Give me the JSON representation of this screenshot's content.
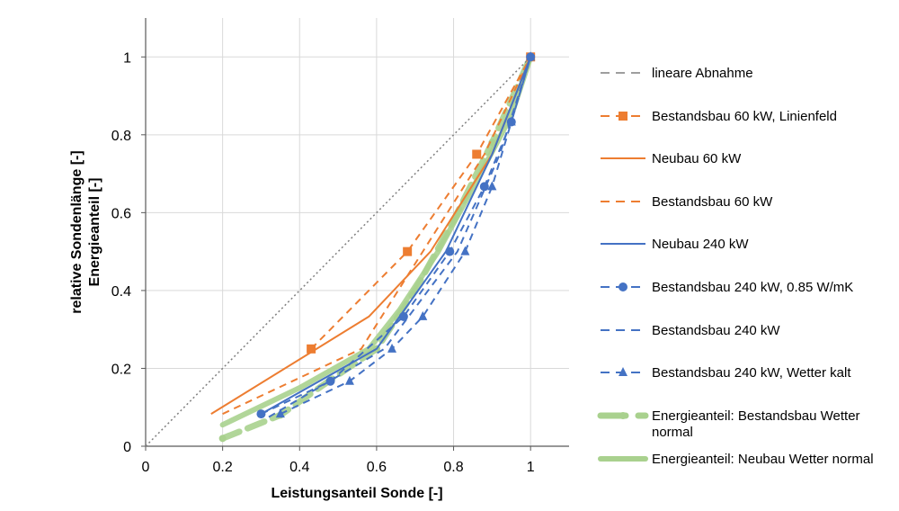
{
  "chart_data": {
    "type": "line",
    "xlabel": "Leistungsanteil Sonde [-]",
    "ylabel_lines": [
      "relative Sondenlänge [-]",
      "Energieanteil [-]"
    ],
    "xlim": [
      0,
      1.1
    ],
    "ylim": [
      0,
      1.1
    ],
    "x_ticks": [
      "0",
      "0.2",
      "0.4",
      "0.6",
      "0.8",
      "1"
    ],
    "y_ticks": [
      "0",
      "0.2",
      "0.4",
      "0.6",
      "0.8",
      "1"
    ],
    "grid": true,
    "legend_position": "right",
    "series": [
      {
        "name": "lineare Abnahme",
        "color": "#7f7f7f",
        "style": "dotted",
        "width": 1.5,
        "marker": "none",
        "points": [
          [
            0,
            0
          ],
          [
            1,
            1
          ]
        ]
      },
      {
        "name": "Bestandsbau 60 kW, Linienfeld",
        "color": "#ed7d31",
        "style": "dashed",
        "width": 2,
        "marker": "square",
        "points": [
          [
            0.43,
            0.25
          ],
          [
            0.68,
            0.5
          ],
          [
            0.86,
            0.75
          ],
          [
            1.0,
            1.0
          ]
        ]
      },
      {
        "name": "Neubau 60 kW",
        "color": "#ed7d31",
        "style": "solid",
        "width": 2,
        "marker": "none",
        "points": [
          [
            0.17,
            0.083
          ],
          [
            0.58,
            0.333
          ],
          [
            0.74,
            0.5
          ],
          [
            0.9,
            0.75
          ],
          [
            1.0,
            1.0
          ]
        ]
      },
      {
        "name": "Bestandsbau 60 kW",
        "color": "#ed7d31",
        "style": "dashed",
        "width": 2,
        "marker": "none",
        "points": [
          [
            0.2,
            0.083
          ],
          [
            0.56,
            0.25
          ],
          [
            0.72,
            0.5
          ],
          [
            0.88,
            0.75
          ],
          [
            1.0,
            1.0
          ]
        ]
      },
      {
        "name": "Neubau 240 kW",
        "color": "#4472c4",
        "style": "solid",
        "width": 2,
        "marker": "none",
        "points": [
          [
            0.3,
            0.083
          ],
          [
            0.6,
            0.25
          ],
          [
            0.78,
            0.5
          ],
          [
            0.9,
            0.75
          ],
          [
            1.0,
            1.0
          ]
        ]
      },
      {
        "name": "Bestandsbau 240 kW, 0.85 W/mK",
        "color": "#4472c4",
        "style": "dashed",
        "width": 2,
        "marker": "circle",
        "points": [
          [
            0.3,
            0.083
          ],
          [
            0.48,
            0.167
          ],
          [
            0.67,
            0.333
          ],
          [
            0.79,
            0.5
          ],
          [
            0.88,
            0.667
          ],
          [
            0.95,
            0.833
          ],
          [
            1.0,
            1.0
          ]
        ]
      },
      {
        "name": "Bestandsbau 240 kW",
        "color": "#4472c4",
        "style": "dashed",
        "width": 2,
        "marker": "none",
        "points": [
          [
            0.32,
            0.075
          ],
          [
            0.62,
            0.25
          ],
          [
            0.81,
            0.5
          ],
          [
            0.92,
            0.75
          ],
          [
            1.0,
            1.0
          ]
        ]
      },
      {
        "name": "Bestandsbau 240 kW, Wetter kalt",
        "color": "#4472c4",
        "style": "dashed",
        "width": 2,
        "marker": "triangle",
        "points": [
          [
            0.35,
            0.083
          ],
          [
            0.53,
            0.167
          ],
          [
            0.64,
            0.25
          ],
          [
            0.72,
            0.333
          ],
          [
            0.83,
            0.5
          ],
          [
            0.9,
            0.667
          ],
          [
            0.95,
            0.833
          ],
          [
            1.0,
            1.0
          ]
        ]
      },
      {
        "name": "Energieanteil: Bestandsbau Wetter normal",
        "color": "#a9d18e",
        "style": "dashed",
        "width": 7,
        "marker": "circle",
        "points": [
          [
            0.2,
            0.02
          ],
          [
            0.35,
            0.08
          ],
          [
            0.48,
            0.17
          ],
          [
            0.6,
            0.25
          ],
          [
            0.7,
            0.4
          ],
          [
            0.8,
            0.58
          ],
          [
            0.9,
            0.78
          ],
          [
            1.0,
            1.0
          ]
        ]
      },
      {
        "name": "Energieanteil: Neubau Wetter normal",
        "color": "#a9d18e",
        "style": "solid",
        "width": 6,
        "marker": "none",
        "points": [
          [
            0.2,
            0.055
          ],
          [
            0.4,
            0.15
          ],
          [
            0.58,
            0.25
          ],
          [
            0.66,
            0.35
          ],
          [
            0.76,
            0.5
          ],
          [
            0.87,
            0.7
          ],
          [
            0.95,
            0.85
          ],
          [
            1.0,
            1.0
          ]
        ]
      }
    ]
  }
}
